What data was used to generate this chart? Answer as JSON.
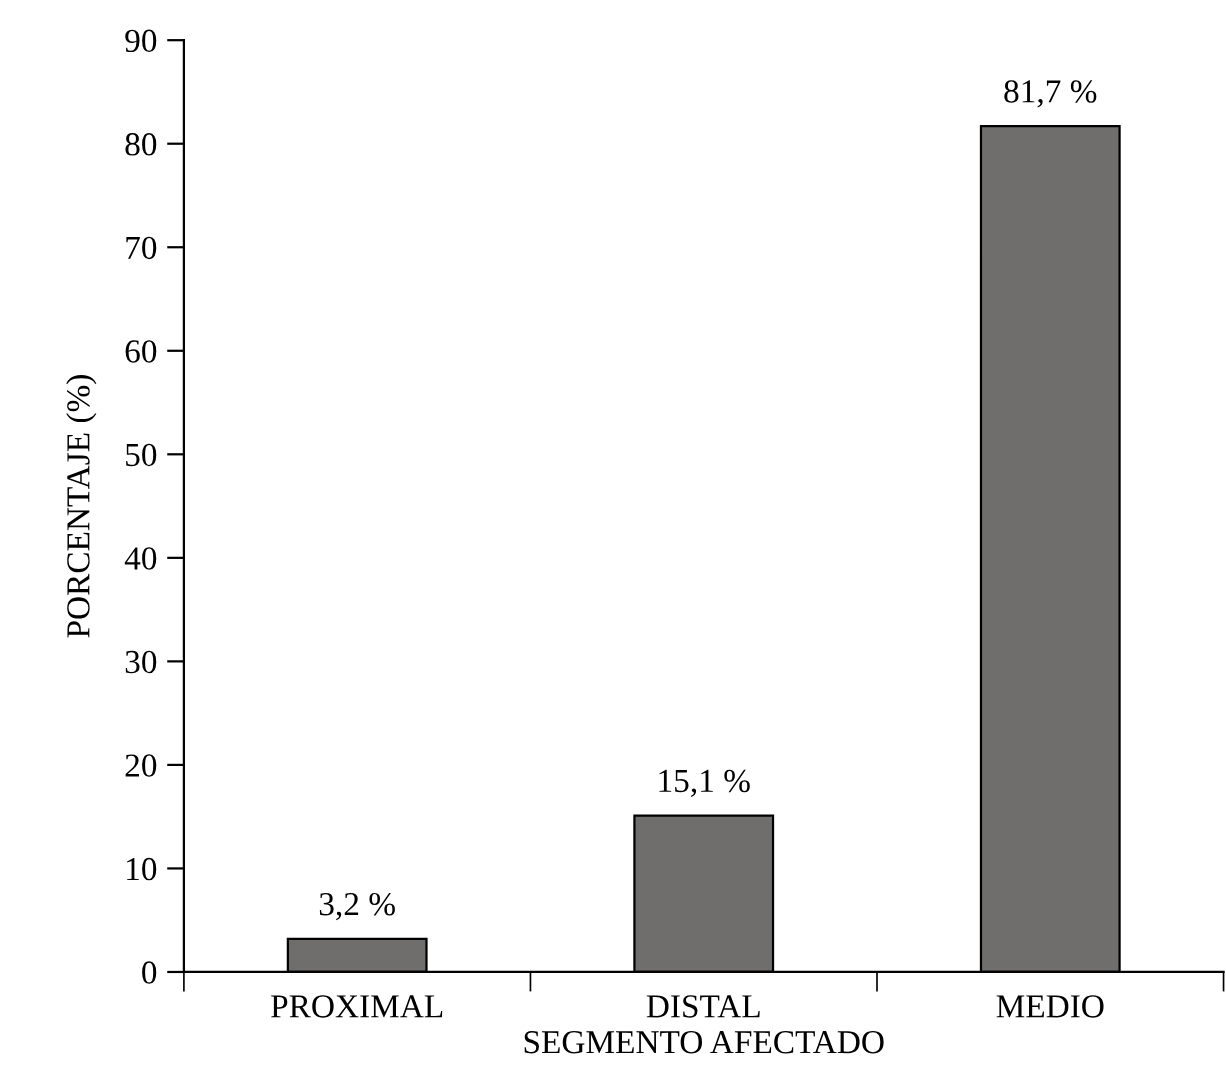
{
  "chart_data": {
    "type": "bar",
    "xlabel": "SEGMENTO AFECTADO",
    "ylabel": "PORCENTAJE (%)",
    "categories": [
      "PROXIMAL",
      "DISTAL",
      "MEDIO"
    ],
    "values": [
      3.2,
      15.1,
      81.7
    ],
    "value_labels": [
      "3,2 %",
      "15,1 %",
      "81,7 %"
    ],
    "color": "#6f6e6c",
    "ylim": [
      0,
      90
    ],
    "yticks": [
      0,
      10,
      20,
      30,
      40,
      50,
      60,
      70,
      80,
      90
    ],
    "grid": false,
    "legend": false
  }
}
